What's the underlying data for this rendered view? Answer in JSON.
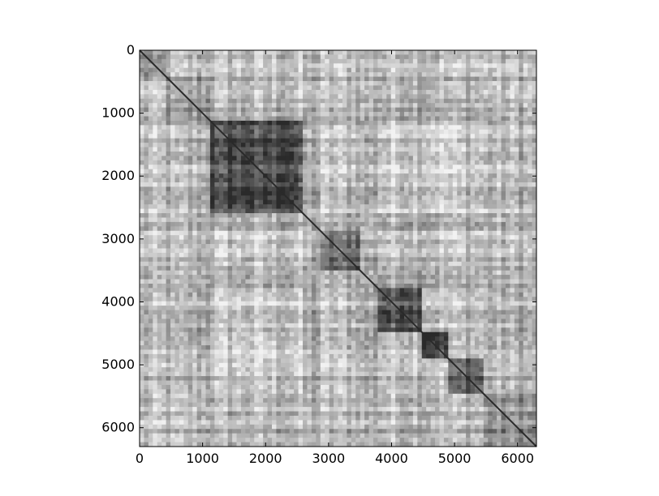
{
  "chart_data": {
    "type": "heatmap",
    "title": "",
    "xlabel": "",
    "ylabel": "",
    "colormap": "grayscale",
    "colors": {
      "dark": "#2a2a2a",
      "light": "#f2f2f2",
      "frame": "#000000"
    },
    "matrix_size": 6300,
    "xlim": [
      0,
      6300
    ],
    "ylim": [
      6300,
      0
    ],
    "x_ticks": [
      {
        "value": 0,
        "label": "0"
      },
      {
        "value": 1000,
        "label": "1000"
      },
      {
        "value": 2000,
        "label": "2000"
      },
      {
        "value": 3000,
        "label": "3000"
      },
      {
        "value": 4000,
        "label": "4000"
      },
      {
        "value": 5000,
        "label": "5000"
      },
      {
        "value": 6000,
        "label": "6000"
      }
    ],
    "y_ticks": [
      {
        "value": 0,
        "label": "0"
      },
      {
        "value": 1000,
        "label": "1000"
      },
      {
        "value": 2000,
        "label": "2000"
      },
      {
        "value": 3000,
        "label": "3000"
      },
      {
        "value": 4000,
        "label": "4000"
      },
      {
        "value": 5000,
        "label": "5000"
      },
      {
        "value": 6000,
        "label": "6000"
      }
    ],
    "block_boundaries": [
      0,
      450,
      1100,
      2600,
      2900,
      3500,
      3750,
      4500,
      4900,
      5450,
      6300
    ],
    "block_intensity": [
      0.55,
      0.45,
      0.85,
      0.35,
      0.65,
      0.35,
      0.75,
      0.85,
      0.7,
      0.5
    ],
    "diagonal": true,
    "grid": false,
    "legend": "none"
  }
}
